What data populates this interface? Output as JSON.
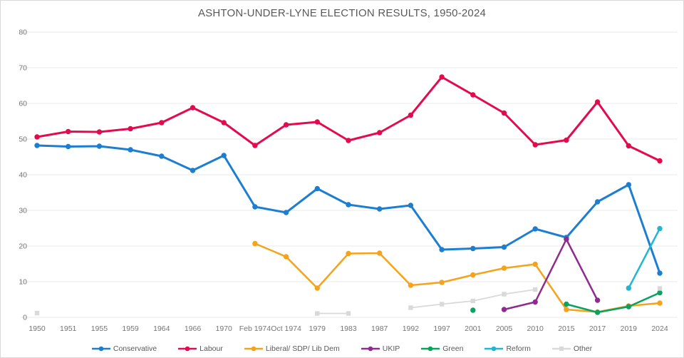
{
  "chart_data": {
    "type": "line",
    "title": "ASHTON-UNDER-LYNE ELECTION RESULTS, 1950-2024",
    "xlabel": "",
    "ylabel": "",
    "ylim": [
      0,
      80
    ],
    "y_ticks": [
      0,
      10,
      20,
      30,
      40,
      50,
      60,
      70,
      80
    ],
    "grid": true,
    "legend_position": "bottom",
    "categories": [
      "1950",
      "1951",
      "1955",
      "1959",
      "1964",
      "1966",
      "1970",
      "Feb 1974",
      "Oct 1974",
      "1979",
      "1983",
      "1987",
      "1992",
      "1997",
      "2001",
      "2005",
      "2010",
      "2015",
      "2017",
      "2019",
      "2024"
    ],
    "series": [
      {
        "name": "Conservative",
        "color": "#1d7ed1",
        "marker": "circle",
        "values": [
          48.2,
          47.9,
          48.0,
          47.0,
          45.2,
          41.2,
          45.4,
          31.0,
          29.4,
          36.1,
          31.6,
          30.4,
          31.4,
          19.0,
          19.3,
          19.7,
          24.8,
          22.4,
          32.4,
          37.2,
          12.4
        ]
      },
      {
        "name": "Labour",
        "color": "#e30b4e",
        "marker": "circle",
        "values": [
          50.6,
          52.1,
          52.0,
          52.9,
          54.6,
          58.8,
          54.6,
          48.2,
          54.0,
          54.8,
          49.6,
          51.8,
          56.7,
          67.4,
          62.4,
          57.3,
          48.4,
          49.7,
          60.4,
          48.1,
          43.9
        ]
      },
      {
        "name": "Liberal/ SDP/ Lib Dem",
        "color": "#f5a31c",
        "marker": "circle",
        "values": [
          null,
          null,
          null,
          null,
          null,
          null,
          null,
          20.7,
          17.0,
          8.2,
          17.9,
          18.0,
          9.0,
          9.8,
          11.9,
          13.8,
          14.9,
          2.2,
          1.5,
          3.2,
          4.0
        ]
      },
      {
        "name": "UKIP",
        "color": "#8f2b8f",
        "marker": "circle",
        "values": [
          null,
          null,
          null,
          null,
          null,
          null,
          null,
          null,
          null,
          null,
          null,
          null,
          null,
          null,
          null,
          2.2,
          4.3,
          21.9,
          4.8,
          null,
          null
        ]
      },
      {
        "name": "Green",
        "color": "#0aa25f",
        "marker": "circle",
        "values": [
          null,
          null,
          null,
          null,
          null,
          null,
          null,
          null,
          null,
          null,
          null,
          null,
          null,
          null,
          2.0,
          null,
          null,
          3.7,
          1.4,
          3.0,
          6.9
        ]
      },
      {
        "name": "Reform",
        "color": "#21b6d2",
        "marker": "circle",
        "values": [
          null,
          null,
          null,
          null,
          null,
          null,
          null,
          null,
          null,
          null,
          null,
          null,
          null,
          null,
          null,
          null,
          null,
          null,
          null,
          8.2,
          24.9
        ]
      },
      {
        "name": "Other",
        "color": "#d9d9d9",
        "marker": "square",
        "values": [
          1.2,
          null,
          null,
          null,
          null,
          null,
          null,
          null,
          null,
          1.1,
          1.1,
          null,
          2.7,
          3.7,
          4.6,
          6.5,
          7.8,
          null,
          null,
          null,
          8.1
        ]
      }
    ]
  },
  "colors": {
    "background": "#ffffff",
    "border": "#d9d9d9",
    "title_text": "#595959",
    "axis_text": "#757575",
    "gridline": "#e8e8e8"
  }
}
